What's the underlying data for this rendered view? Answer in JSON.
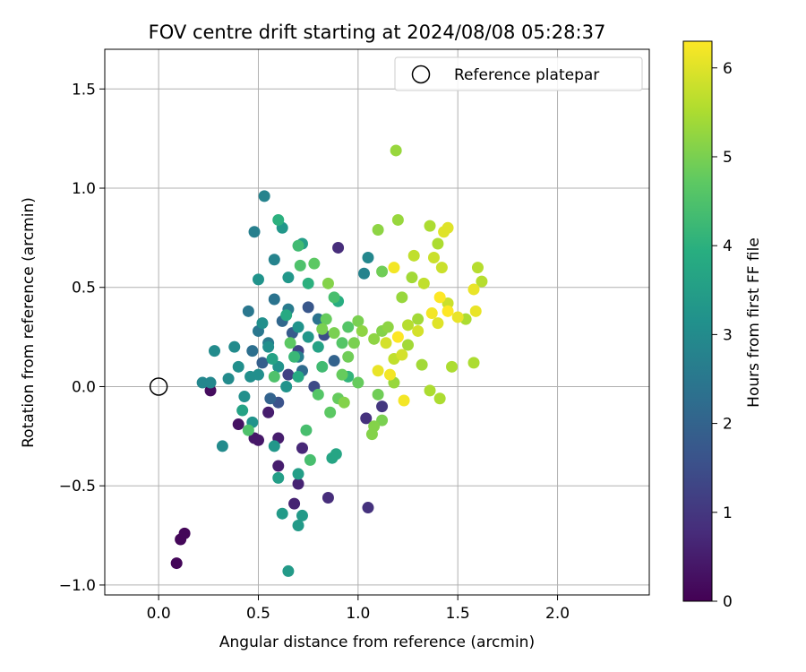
{
  "chart_data": {
    "type": "scatter",
    "title": "FOV centre drift starting at 2024/08/08 05:28:37",
    "xlabel": "Angular distance from reference (arcmin)",
    "ylabel": "Rotation from reference (arcmin)",
    "xlim": [
      -0.27,
      2.46
    ],
    "ylim": [
      -1.05,
      1.7
    ],
    "xticks": [
      0.0,
      0.5,
      1.0,
      1.5,
      2.0
    ],
    "xtick_labels": [
      "0.0",
      "0.5",
      "1.0",
      "1.5",
      "2.0"
    ],
    "yticks": [
      -1.0,
      -0.5,
      0.0,
      0.5,
      1.0,
      1.5
    ],
    "ytick_labels": [
      "−1.0",
      "−0.5",
      "0.0",
      "0.5",
      "1.0",
      "1.5"
    ],
    "grid": true,
    "legend": {
      "position": "top-right",
      "label": "Reference platepar"
    },
    "reference_point": {
      "x": 0.0,
      "y": 0.0
    },
    "colorbar": {
      "label": "Hours from first FF file",
      "range": [
        0,
        6.3
      ],
      "ticks": [
        0,
        1,
        2,
        3,
        4,
        5,
        6
      ],
      "tick_labels": [
        "0",
        "1",
        "2",
        "3",
        "4",
        "5",
        "6"
      ],
      "colormap": "viridis"
    },
    "points": [
      {
        "x": 0.09,
        "y": -0.89,
        "c": 0.1
      },
      {
        "x": 0.11,
        "y": -0.77,
        "c": 0.1
      },
      {
        "x": 0.13,
        "y": -0.74,
        "c": 0.1
      },
      {
        "x": 0.26,
        "y": -0.02,
        "c": 0.2
      },
      {
        "x": 0.4,
        "y": -0.19,
        "c": 0.3
      },
      {
        "x": 0.48,
        "y": -0.26,
        "c": 0.4
      },
      {
        "x": 0.5,
        "y": -0.27,
        "c": 0.4
      },
      {
        "x": 0.55,
        "y": -0.13,
        "c": 0.5
      },
      {
        "x": 0.6,
        "y": -0.4,
        "c": 0.5
      },
      {
        "x": 0.6,
        "y": -0.26,
        "c": 0.5
      },
      {
        "x": 0.68,
        "y": -0.59,
        "c": 0.6
      },
      {
        "x": 0.7,
        "y": -0.49,
        "c": 0.6
      },
      {
        "x": 0.72,
        "y": -0.31,
        "c": 0.7
      },
      {
        "x": 0.85,
        "y": -0.56,
        "c": 0.8
      },
      {
        "x": 0.9,
        "y": 0.7,
        "c": 0.8
      },
      {
        "x": 1.04,
        "y": -0.16,
        "c": 0.9
      },
      {
        "x": 1.05,
        "y": -0.61,
        "c": 0.9
      },
      {
        "x": 1.12,
        "y": -0.1,
        "c": 1.0
      },
      {
        "x": 0.65,
        "y": 0.06,
        "c": 1.2
      },
      {
        "x": 0.7,
        "y": 0.18,
        "c": 1.3
      },
      {
        "x": 0.78,
        "y": 0.0,
        "c": 1.4
      },
      {
        "x": 0.83,
        "y": 0.26,
        "c": 1.5
      },
      {
        "x": 0.6,
        "y": -0.08,
        "c": 1.6
      },
      {
        "x": 0.75,
        "y": 0.4,
        "c": 1.7
      },
      {
        "x": 0.67,
        "y": 0.27,
        "c": 1.8
      },
      {
        "x": 0.52,
        "y": 0.12,
        "c": 1.9
      },
      {
        "x": 0.56,
        "y": -0.06,
        "c": 2.0
      },
      {
        "x": 0.88,
        "y": 0.13,
        "c": 2.0
      },
      {
        "x": 0.62,
        "y": 0.33,
        "c": 2.1
      },
      {
        "x": 0.72,
        "y": 0.08,
        "c": 2.2
      },
      {
        "x": 0.47,
        "y": 0.18,
        "c": 2.3
      },
      {
        "x": 0.58,
        "y": 0.44,
        "c": 2.4
      },
      {
        "x": 0.8,
        "y": 0.34,
        "c": 2.4
      },
      {
        "x": 0.5,
        "y": 0.28,
        "c": 2.5
      },
      {
        "x": 0.45,
        "y": 0.38,
        "c": 2.5
      },
      {
        "x": 0.55,
        "y": 0.22,
        "c": 2.6
      },
      {
        "x": 0.65,
        "y": 0.39,
        "c": 2.6
      },
      {
        "x": 0.7,
        "y": 0.15,
        "c": 2.7
      },
      {
        "x": 0.48,
        "y": 0.78,
        "c": 2.7
      },
      {
        "x": 0.53,
        "y": 0.96,
        "c": 2.8
      },
      {
        "x": 0.58,
        "y": 0.64,
        "c": 2.8
      },
      {
        "x": 1.03,
        "y": 0.57,
        "c": 2.8
      },
      {
        "x": 1.05,
        "y": 0.65,
        "c": 2.9
      },
      {
        "x": 0.22,
        "y": 0.02,
        "c": 2.9
      },
      {
        "x": 0.26,
        "y": 0.02,
        "c": 2.9
      },
      {
        "x": 0.28,
        "y": 0.18,
        "c": 3.0
      },
      {
        "x": 0.32,
        "y": -0.3,
        "c": 3.0
      },
      {
        "x": 0.35,
        "y": 0.04,
        "c": 3.0
      },
      {
        "x": 0.38,
        "y": 0.2,
        "c": 3.0
      },
      {
        "x": 0.4,
        "y": 0.1,
        "c": 3.1
      },
      {
        "x": 0.43,
        "y": -0.05,
        "c": 3.1
      },
      {
        "x": 0.46,
        "y": 0.05,
        "c": 3.1
      },
      {
        "x": 0.5,
        "y": 0.06,
        "c": 3.1
      },
      {
        "x": 0.52,
        "y": 0.32,
        "c": 3.1
      },
      {
        "x": 0.55,
        "y": 0.2,
        "c": 3.1
      },
      {
        "x": 0.47,
        "y": -0.18,
        "c": 3.2
      },
      {
        "x": 0.5,
        "y": 0.54,
        "c": 3.2
      },
      {
        "x": 0.6,
        "y": 0.1,
        "c": 3.2
      },
      {
        "x": 0.64,
        "y": 0.0,
        "c": 3.2
      },
      {
        "x": 0.7,
        "y": 0.3,
        "c": 3.2
      },
      {
        "x": 0.58,
        "y": -0.3,
        "c": 3.3
      },
      {
        "x": 0.62,
        "y": 0.8,
        "c": 3.3
      },
      {
        "x": 0.65,
        "y": 0.55,
        "c": 3.3
      },
      {
        "x": 0.75,
        "y": 0.25,
        "c": 3.3
      },
      {
        "x": 0.62,
        "y": -0.64,
        "c": 3.4
      },
      {
        "x": 0.65,
        "y": -0.93,
        "c": 3.4
      },
      {
        "x": 0.7,
        "y": -0.7,
        "c": 3.4
      },
      {
        "x": 0.72,
        "y": -0.65,
        "c": 3.4
      },
      {
        "x": 0.7,
        "y": -0.44,
        "c": 3.5
      },
      {
        "x": 0.72,
        "y": 0.72,
        "c": 3.5
      },
      {
        "x": 0.6,
        "y": -0.46,
        "c": 3.5
      },
      {
        "x": 0.42,
        "y": -0.12,
        "c": 3.6
      },
      {
        "x": 0.57,
        "y": 0.14,
        "c": 3.6
      },
      {
        "x": 0.8,
        "y": 0.2,
        "c": 3.6
      },
      {
        "x": 0.87,
        "y": -0.36,
        "c": 3.7
      },
      {
        "x": 0.89,
        "y": -0.34,
        "c": 3.7
      },
      {
        "x": 0.7,
        "y": 0.05,
        "c": 3.8
      },
      {
        "x": 0.64,
        "y": 0.36,
        "c": 3.8
      },
      {
        "x": 0.9,
        "y": 0.43,
        "c": 3.9
      },
      {
        "x": 0.6,
        "y": 0.84,
        "c": 4.0
      },
      {
        "x": 0.75,
        "y": 0.52,
        "c": 4.0
      },
      {
        "x": 0.95,
        "y": 0.05,
        "c": 4.1
      },
      {
        "x": 0.68,
        "y": 0.15,
        "c": 4.2
      },
      {
        "x": 0.82,
        "y": 0.1,
        "c": 4.3
      },
      {
        "x": 0.7,
        "y": 0.71,
        "c": 4.3
      },
      {
        "x": 0.88,
        "y": 0.45,
        "c": 4.4
      },
      {
        "x": 0.74,
        "y": -0.22,
        "c": 4.4
      },
      {
        "x": 0.76,
        "y": -0.37,
        "c": 4.4
      },
      {
        "x": 0.45,
        "y": -0.22,
        "c": 4.5
      },
      {
        "x": 0.58,
        "y": 0.05,
        "c": 4.5
      },
      {
        "x": 0.71,
        "y": 0.61,
        "c": 4.5
      },
      {
        "x": 0.8,
        "y": -0.04,
        "c": 4.6
      },
      {
        "x": 0.92,
        "y": 0.22,
        "c": 4.6
      },
      {
        "x": 0.95,
        "y": 0.3,
        "c": 4.6
      },
      {
        "x": 0.66,
        "y": 0.22,
        "c": 4.7
      },
      {
        "x": 0.78,
        "y": 0.62,
        "c": 4.7
      },
      {
        "x": 0.86,
        "y": -0.13,
        "c": 4.7
      },
      {
        "x": 0.92,
        "y": 0.06,
        "c": 4.8
      },
      {
        "x": 1.0,
        "y": 0.02,
        "c": 4.8
      },
      {
        "x": 0.84,
        "y": 0.34,
        "c": 4.8
      },
      {
        "x": 0.9,
        "y": -0.06,
        "c": 4.8
      },
      {
        "x": 1.1,
        "y": -0.04,
        "c": 4.9
      },
      {
        "x": 1.12,
        "y": 0.58,
        "c": 4.9
      },
      {
        "x": 0.95,
        "y": 0.15,
        "c": 4.9
      },
      {
        "x": 0.82,
        "y": 0.29,
        "c": 5.0
      },
      {
        "x": 0.88,
        "y": 0.27,
        "c": 5.0
      },
      {
        "x": 1.0,
        "y": 0.33,
        "c": 5.0
      },
      {
        "x": 0.98,
        "y": 0.22,
        "c": 5.0
      },
      {
        "x": 1.12,
        "y": -0.17,
        "c": 5.0
      },
      {
        "x": 0.93,
        "y": -0.08,
        "c": 5.1
      },
      {
        "x": 1.08,
        "y": -0.2,
        "c": 5.1
      },
      {
        "x": 1.07,
        "y": -0.24,
        "c": 5.1
      },
      {
        "x": 1.12,
        "y": 0.28,
        "c": 5.1
      },
      {
        "x": 0.85,
        "y": 0.52,
        "c": 5.1
      },
      {
        "x": 1.02,
        "y": 0.28,
        "c": 5.2
      },
      {
        "x": 1.08,
        "y": 0.24,
        "c": 5.2
      },
      {
        "x": 1.1,
        "y": 0.79,
        "c": 5.2
      },
      {
        "x": 1.15,
        "y": 0.3,
        "c": 5.2
      },
      {
        "x": 1.18,
        "y": 0.02,
        "c": 5.3
      },
      {
        "x": 1.2,
        "y": 0.84,
        "c": 5.3
      },
      {
        "x": 1.19,
        "y": 1.19,
        "c": 5.3
      },
      {
        "x": 1.22,
        "y": 0.45,
        "c": 5.3
      },
      {
        "x": 1.25,
        "y": 0.21,
        "c": 5.4
      },
      {
        "x": 1.27,
        "y": 0.55,
        "c": 5.4
      },
      {
        "x": 1.3,
        "y": 0.34,
        "c": 5.4
      },
      {
        "x": 1.32,
        "y": 0.11,
        "c": 5.4
      },
      {
        "x": 1.36,
        "y": 0.81,
        "c": 5.5
      },
      {
        "x": 1.36,
        "y": -0.02,
        "c": 5.5
      },
      {
        "x": 1.4,
        "y": 0.72,
        "c": 5.5
      },
      {
        "x": 1.41,
        "y": -0.06,
        "c": 5.5
      },
      {
        "x": 1.47,
        "y": 0.1,
        "c": 5.5
      },
      {
        "x": 1.54,
        "y": 0.34,
        "c": 5.5
      },
      {
        "x": 1.58,
        "y": 0.12,
        "c": 5.5
      },
      {
        "x": 1.6,
        "y": 0.6,
        "c": 5.6
      },
      {
        "x": 1.62,
        "y": 0.53,
        "c": 5.6
      },
      {
        "x": 1.25,
        "y": 0.31,
        "c": 5.6
      },
      {
        "x": 1.18,
        "y": 0.14,
        "c": 5.7
      },
      {
        "x": 1.28,
        "y": 0.66,
        "c": 5.7
      },
      {
        "x": 1.33,
        "y": 0.52,
        "c": 5.7
      },
      {
        "x": 1.38,
        "y": 0.65,
        "c": 5.8
      },
      {
        "x": 1.42,
        "y": 0.6,
        "c": 5.8
      },
      {
        "x": 1.45,
        "y": 0.42,
        "c": 5.8
      },
      {
        "x": 1.3,
        "y": 0.28,
        "c": 5.9
      },
      {
        "x": 1.14,
        "y": 0.22,
        "c": 5.9
      },
      {
        "x": 1.22,
        "y": 0.16,
        "c": 5.9
      },
      {
        "x": 1.4,
        "y": 0.32,
        "c": 6.0
      },
      {
        "x": 1.43,
        "y": 0.78,
        "c": 6.0
      },
      {
        "x": 1.45,
        "y": 0.8,
        "c": 6.0
      },
      {
        "x": 1.5,
        "y": 0.35,
        "c": 6.1
      },
      {
        "x": 1.58,
        "y": 0.49,
        "c": 6.1
      },
      {
        "x": 1.59,
        "y": 0.38,
        "c": 6.1
      },
      {
        "x": 1.1,
        "y": 0.08,
        "c": 6.1
      },
      {
        "x": 1.16,
        "y": 0.06,
        "c": 6.2
      },
      {
        "x": 1.18,
        "y": 0.6,
        "c": 6.2
      },
      {
        "x": 1.23,
        "y": -0.07,
        "c": 6.2
      },
      {
        "x": 1.37,
        "y": 0.37,
        "c": 6.2
      },
      {
        "x": 1.41,
        "y": 0.45,
        "c": 6.3
      },
      {
        "x": 1.45,
        "y": 0.38,
        "c": 6.3
      },
      {
        "x": 1.2,
        "y": 0.25,
        "c": 6.3
      }
    ]
  }
}
